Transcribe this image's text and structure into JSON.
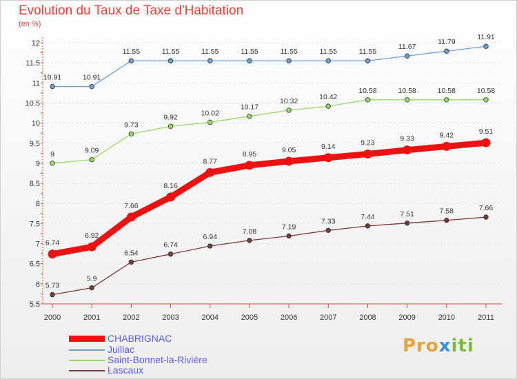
{
  "chart_data": {
    "type": "line",
    "title": "Evolution du Taux de Taxe d'Habitation",
    "subtitle": "(en %)",
    "xlabel": "",
    "ylabel": "",
    "x": [
      "2000",
      "2001",
      "2002",
      "2003",
      "2004",
      "2005",
      "2006",
      "2007",
      "2008",
      "2009",
      "2010",
      "2011"
    ],
    "ylim": [
      5.5,
      12
    ],
    "yticks": [
      5.5,
      6,
      6.5,
      7,
      7.5,
      8,
      8.5,
      9,
      9.5,
      10,
      10.5,
      11,
      11.5,
      12
    ],
    "ytick_labels": [
      "5.5",
      "6",
      "6.5",
      "7",
      "7.5",
      "8",
      "8.5",
      "9",
      "9.5",
      "10",
      "10.5",
      "11",
      "11.5",
      "12"
    ],
    "grid": "horizontal dashed",
    "legend_position": "bottom-left",
    "series": [
      {
        "name": "CHABRIGNAC",
        "color": "#ee1111",
        "emphasis": true,
        "values": [
          6.74,
          6.92,
          7.66,
          8.16,
          8.77,
          8.95,
          9.05,
          9.14,
          9.23,
          9.33,
          9.42,
          9.51
        ],
        "labels": [
          "6.74",
          "6.92",
          "7.66",
          "8.16",
          "8.77",
          "8.95",
          "9.05",
          "9.14",
          "9.23",
          "9.33",
          "9.42",
          "9.51"
        ]
      },
      {
        "name": "Juillac",
        "color": "#6a9fd0",
        "emphasis": false,
        "values": [
          10.91,
          10.91,
          11.55,
          11.55,
          11.55,
          11.55,
          11.55,
          11.55,
          11.55,
          11.67,
          11.79,
          11.91
        ],
        "labels": [
          "10.91",
          "10.91",
          "11.55",
          "11.55",
          "11.55",
          "11.55",
          "11.55",
          "11.55",
          "11.55",
          "11.67",
          "11.79",
          "11.91"
        ]
      },
      {
        "name": "Saint-Bonnet-la-Rivière",
        "color": "#99d96a",
        "emphasis": false,
        "values": [
          9,
          9.09,
          9.73,
          9.92,
          10.02,
          10.17,
          10.32,
          10.42,
          10.58,
          10.58,
          10.58,
          10.58
        ],
        "labels": [
          "9",
          "9.09",
          "9.73",
          "9.92",
          "10.02",
          "10.17",
          "10.32",
          "10.42",
          "10.58",
          "10.58",
          "10.58",
          "10.58"
        ]
      },
      {
        "name": "Lascaux",
        "color": "#7a3a3a",
        "emphasis": false,
        "values": [
          5.73,
          5.9,
          6.54,
          6.74,
          6.94,
          7.08,
          7.19,
          7.33,
          7.44,
          7.51,
          7.58,
          7.66
        ],
        "labels": [
          "5.73",
          "5.9",
          "6.54",
          "6.74",
          "6.94",
          "7.08",
          "7.19",
          "7.33",
          "7.44",
          "7.51",
          "7.58",
          "7.66"
        ]
      }
    ]
  },
  "branding": {
    "part1": "Pro",
    "part2": "x",
    "part3": "iti"
  }
}
